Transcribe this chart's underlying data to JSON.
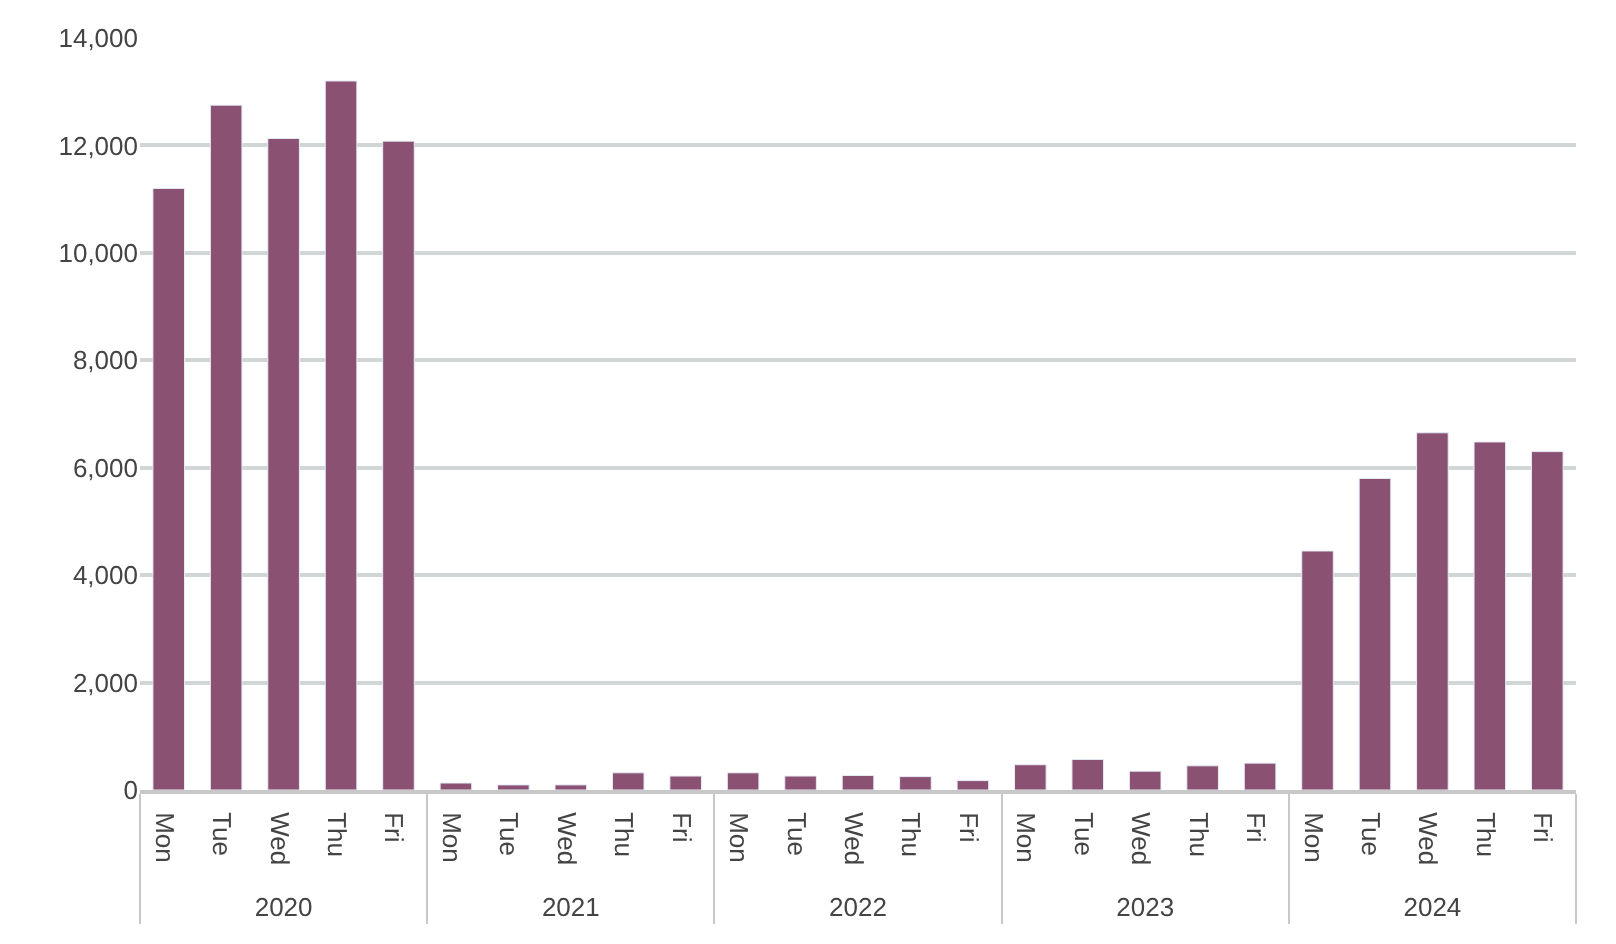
{
  "chart_data": {
    "type": "bar",
    "categories": [
      "Mon",
      "Tue",
      "Wed",
      "Thu",
      "Fri",
      "Mon",
      "Tue",
      "Wed",
      "Thu",
      "Fri",
      "Mon",
      "Tue",
      "Wed",
      "Thu",
      "Fri",
      "Mon",
      "Tue",
      "Wed",
      "Thu",
      "Fri",
      "Mon",
      "Tue",
      "Wed",
      "Thu",
      "Fri"
    ],
    "values": [
      11200,
      12750,
      12130,
      13200,
      12080,
      130,
      95,
      95,
      320,
      260,
      320,
      260,
      270,
      250,
      175,
      470,
      570,
      350,
      450,
      500,
      4450,
      5800,
      6650,
      6480,
      6300
    ],
    "color": "#8b5173",
    "annotations": [
      "2020",
      "2021",
      "2022",
      "2023",
      "2024"
    ],
    "ylim": [
      0,
      14000
    ],
    "yticks": [
      {
        "value": 0,
        "label": "0"
      },
      {
        "value": 2000,
        "label": "2,000"
      },
      {
        "value": 4000,
        "label": "4,000"
      },
      {
        "value": 6000,
        "label": "6,000"
      },
      {
        "value": 8000,
        "label": "8,000"
      },
      {
        "value": 10000,
        "label": "10,000"
      },
      {
        "value": 12000,
        "label": "12,000"
      },
      {
        "value": 14000,
        "label": "14,000"
      }
    ],
    "grid": "y"
  }
}
